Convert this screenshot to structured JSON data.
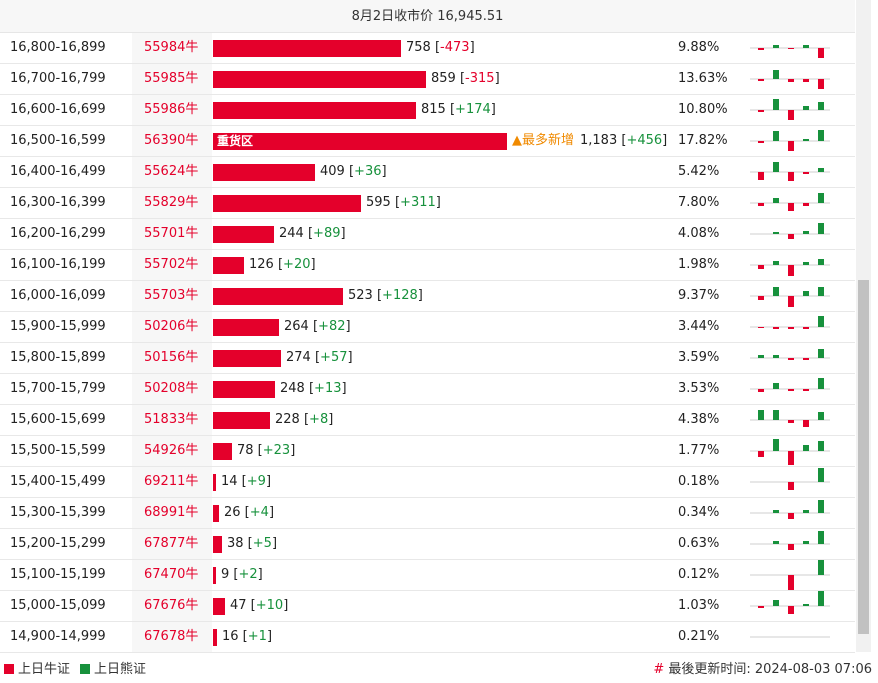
{
  "header": {
    "close_price_text": "8月2日收市价 16,945.51"
  },
  "colors": {
    "bull": "#e4002b",
    "bear": "#17913c",
    "hot": "#f08a00"
  },
  "hot_tag": "▲最多新增",
  "chart_data": {
    "type": "bar",
    "value_max": 1183,
    "rows": [
      {
        "range": "16,800-16,899",
        "code": "55984牛",
        "value": "758",
        "change": "-473",
        "pct": "9.88%",
        "bar_label": "",
        "tag": "",
        "spark": [
          -2,
          3,
          -1,
          3,
          -10
        ]
      },
      {
        "range": "16,700-16,799",
        "code": "55985牛",
        "value": "859",
        "change": "-315",
        "pct": "13.63%",
        "bar_label": "",
        "tag": "",
        "spark": [
          -2,
          9,
          -3,
          -3,
          -10
        ]
      },
      {
        "range": "16,600-16,699",
        "code": "55986牛",
        "value": "815",
        "change": "+174",
        "pct": "10.80%",
        "bar_label": "",
        "tag": "",
        "spark": [
          -2,
          11,
          -10,
          4,
          8
        ]
      },
      {
        "range": "16,500-16,599",
        "code": "56390牛",
        "value": "1,183",
        "change": "+456",
        "pct": "17.82%",
        "bar_label": "重货区",
        "tag": "hot",
        "spark": [
          -2,
          10,
          -10,
          2,
          11
        ]
      },
      {
        "range": "16,400-16,499",
        "code": "55624牛",
        "value": "409",
        "change": "+36",
        "pct": "5.42%",
        "bar_label": "",
        "tag": "",
        "spark": [
          -8,
          10,
          -9,
          -2,
          4
        ]
      },
      {
        "range": "16,300-16,399",
        "code": "55829牛",
        "value": "595",
        "change": "+311",
        "pct": "7.80%",
        "bar_label": "",
        "tag": "",
        "spark": [
          -3,
          5,
          -8,
          -3,
          10
        ]
      },
      {
        "range": "16,200-16,299",
        "code": "55701牛",
        "value": "244",
        "change": "+89",
        "pct": "4.08%",
        "bar_label": "",
        "tag": "",
        "spark": [
          0,
          2,
          -5,
          3,
          11
        ]
      },
      {
        "range": "16,100-16,199",
        "code": "55702牛",
        "value": "126",
        "change": "+20",
        "pct": "1.98%",
        "bar_label": "",
        "tag": "",
        "spark": [
          -4,
          4,
          -11,
          3,
          6
        ]
      },
      {
        "range": "16,000-16,099",
        "code": "55703牛",
        "value": "523",
        "change": "+128",
        "pct": "9.37%",
        "bar_label": "",
        "tag": "",
        "spark": [
          -4,
          9,
          -11,
          5,
          9
        ]
      },
      {
        "range": "15,900-15,999",
        "code": "50206牛",
        "value": "264",
        "change": "+82",
        "pct": "3.44%",
        "bar_label": "",
        "tag": "",
        "spark": [
          -1,
          -2,
          -2,
          -2,
          11
        ]
      },
      {
        "range": "15,800-15,899",
        "code": "50156牛",
        "value": "274",
        "change": "+57",
        "pct": "3.59%",
        "bar_label": "",
        "tag": "",
        "spark": [
          3,
          3,
          -2,
          -2,
          9
        ]
      },
      {
        "range": "15,700-15,799",
        "code": "50208牛",
        "value": "248",
        "change": "+13",
        "pct": "3.53%",
        "bar_label": "",
        "tag": "",
        "spark": [
          -3,
          6,
          -2,
          -2,
          11
        ]
      },
      {
        "range": "15,600-15,699",
        "code": "51833牛",
        "value": "228",
        "change": "+8",
        "pct": "4.38%",
        "bar_label": "",
        "tag": "",
        "spark": [
          10,
          10,
          -3,
          -7,
          8
        ]
      },
      {
        "range": "15,500-15,599",
        "code": "54926牛",
        "value": "78",
        "change": "+23",
        "pct": "1.77%",
        "bar_label": "",
        "tag": "",
        "spark": [
          -6,
          12,
          -14,
          6,
          10
        ]
      },
      {
        "range": "15,400-15,499",
        "code": "69211牛",
        "value": "14",
        "change": "+9",
        "pct": "0.18%",
        "bar_label": "",
        "tag": "",
        "spark": [
          0,
          0,
          -8,
          0,
          14
        ]
      },
      {
        "range": "15,300-15,399",
        "code": "68991牛",
        "value": "26",
        "change": "+4",
        "pct": "0.34%",
        "bar_label": "",
        "tag": "",
        "spark": [
          0,
          3,
          -6,
          3,
          13
        ]
      },
      {
        "range": "15,200-15,299",
        "code": "67877牛",
        "value": "38",
        "change": "+5",
        "pct": "0.63%",
        "bar_label": "",
        "tag": "",
        "spark": [
          0,
          3,
          -6,
          3,
          13
        ]
      },
      {
        "range": "15,100-15,199",
        "code": "67470牛",
        "value": "9",
        "change": "+2",
        "pct": "0.12%",
        "bar_label": "",
        "tag": "",
        "spark": [
          0,
          0,
          -16,
          0,
          16
        ]
      },
      {
        "range": "15,000-15,099",
        "code": "67676牛",
        "value": "47",
        "change": "+10",
        "pct": "1.03%",
        "bar_label": "",
        "tag": "",
        "spark": [
          -2,
          6,
          -8,
          2,
          15
        ]
      },
      {
        "range": "14,900-14,999",
        "code": "67678牛",
        "value": "16",
        "change": "+1",
        "pct": "0.21%",
        "bar_label": "",
        "tag": "",
        "spark": [
          0,
          0,
          0,
          0,
          0
        ]
      }
    ]
  },
  "legend": {
    "bull_label": "上日牛证",
    "bear_label": "上日熊证"
  },
  "footer": {
    "hash": "#",
    "updated_text": "最後更新时间: 2024-08-03 07:06"
  }
}
